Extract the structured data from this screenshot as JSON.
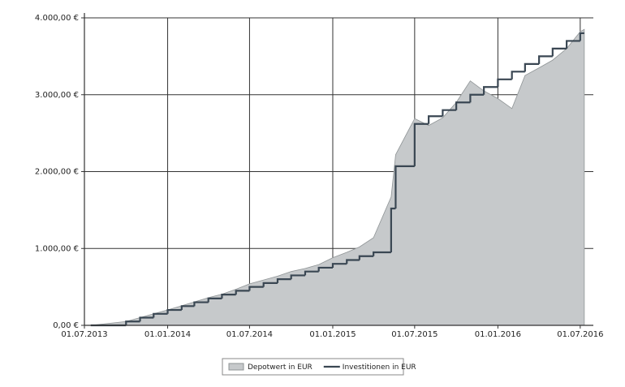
{
  "chart_data": {
    "type": "area-step",
    "x": [
      "2013-07-15",
      "2013-10-01",
      "2013-11-01",
      "2013-12-01",
      "2014-01-01",
      "2014-02-01",
      "2014-03-01",
      "2014-04-01",
      "2014-05-01",
      "2014-06-01",
      "2014-07-01",
      "2014-08-01",
      "2014-09-01",
      "2014-10-01",
      "2014-11-01",
      "2014-12-01",
      "2015-01-01",
      "2015-02-01",
      "2015-03-01",
      "2015-04-01",
      "2015-05-10",
      "2015-05-20",
      "2015-07-01",
      "2015-08-01",
      "2015-09-01",
      "2015-10-01",
      "2015-11-01",
      "2015-12-01",
      "2016-01-01",
      "2016-02-01",
      "2016-03-01",
      "2016-04-01",
      "2016-05-01",
      "2016-06-01",
      "2016-07-01",
      "2016-07-10"
    ],
    "series": [
      {
        "name": "Depotwert in EUR",
        "kind": "area",
        "color": "#c6c9cb",
        "values": [
          0,
          50,
          100,
          150,
          200,
          255,
          305,
          360,
          405,
          470,
          540,
          590,
          640,
          700,
          740,
          790,
          880,
          950,
          1020,
          1140,
          1670,
          2220,
          2690,
          2600,
          2700,
          2900,
          3180,
          3050,
          2950,
          2820,
          3250,
          3350,
          3450,
          3600,
          3820,
          3850
        ]
      },
      {
        "name": "Investitionen in EUR",
        "kind": "step",
        "color": "#3a4753",
        "values": [
          0,
          50,
          100,
          150,
          200,
          250,
          300,
          350,
          400,
          450,
          500,
          550,
          600,
          650,
          700,
          750,
          800,
          850,
          900,
          950,
          1520,
          2070,
          2620,
          2720,
          2800,
          2900,
          3000,
          3100,
          3200,
          3300,
          3400,
          3500,
          3600,
          3700,
          3800,
          3800
        ]
      }
    ],
    "xlim": [
      "2013-07-01",
      "2016-07-30"
    ],
    "xticks": [
      {
        "value": "2013-07-01",
        "label": "01.07.2013"
      },
      {
        "value": "2014-01-01",
        "label": "01.01.2014"
      },
      {
        "value": "2014-07-01",
        "label": "01.07.2014"
      },
      {
        "value": "2015-01-01",
        "label": "01.01.2015"
      },
      {
        "value": "2015-07-01",
        "label": "01.07.2015"
      },
      {
        "value": "2016-01-01",
        "label": "01.01.2016"
      },
      {
        "value": "2016-07-01",
        "label": "01.07.2016"
      }
    ],
    "ylim": [
      0,
      4000
    ],
    "yticks": [
      {
        "value": 0,
        "label": "0,00 €"
      },
      {
        "value": 1000,
        "label": "1.000,00 €"
      },
      {
        "value": 2000,
        "label": "2.000,00 €"
      },
      {
        "value": 3000,
        "label": "3.000,00 €"
      },
      {
        "value": 4000,
        "label": "4.000,00 €"
      }
    ],
    "grid": true,
    "legend": "bottom"
  }
}
